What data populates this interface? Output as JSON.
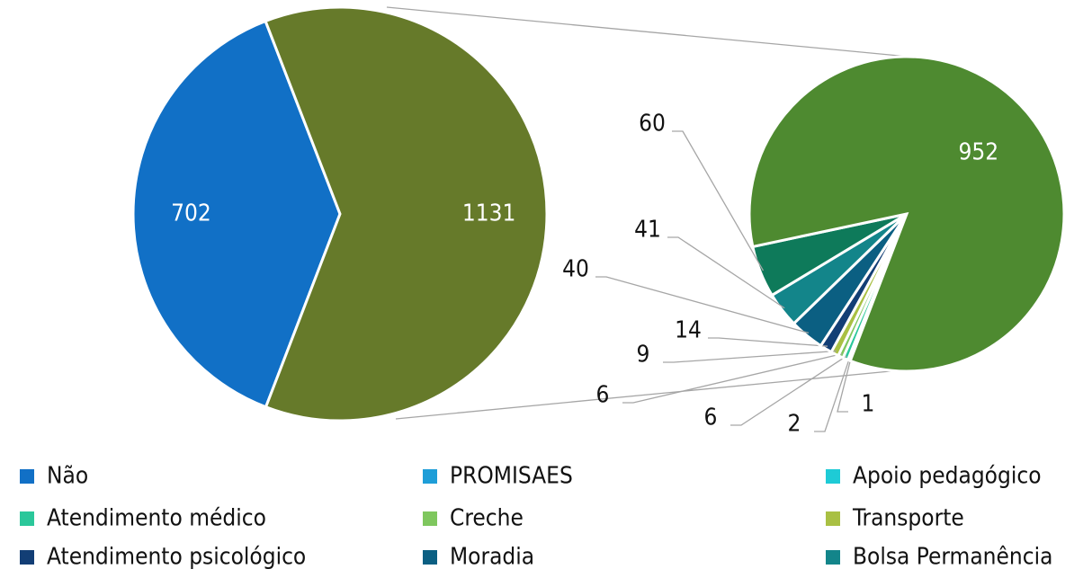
{
  "chart_data": [
    {
      "type": "pie",
      "categories": [
        "Não",
        null
      ],
      "values": [
        702,
        1131
      ],
      "colors": [
        "#1170c6",
        "#667a2a"
      ]
    },
    {
      "type": "pie",
      "categories": [
        "PROMISAES",
        "Apoio pedagógico",
        "Atendimento médico",
        "Creche",
        "Transporte",
        "Atendimento psicológico",
        "Moradia",
        "Bolsa Permanência",
        null,
        null
      ],
      "values": [
        1,
        2,
        6,
        6,
        9,
        14,
        40,
        41,
        60,
        952
      ],
      "colors": [
        "#1e9ed8",
        "#1ecbd6",
        "#2bc79a",
        "#7fc75e",
        "#a9c043",
        "#123e75",
        "#0b5f82",
        "#13858a",
        "#0e7a5a",
        "#4e8a30"
      ]
    }
  ]
}
